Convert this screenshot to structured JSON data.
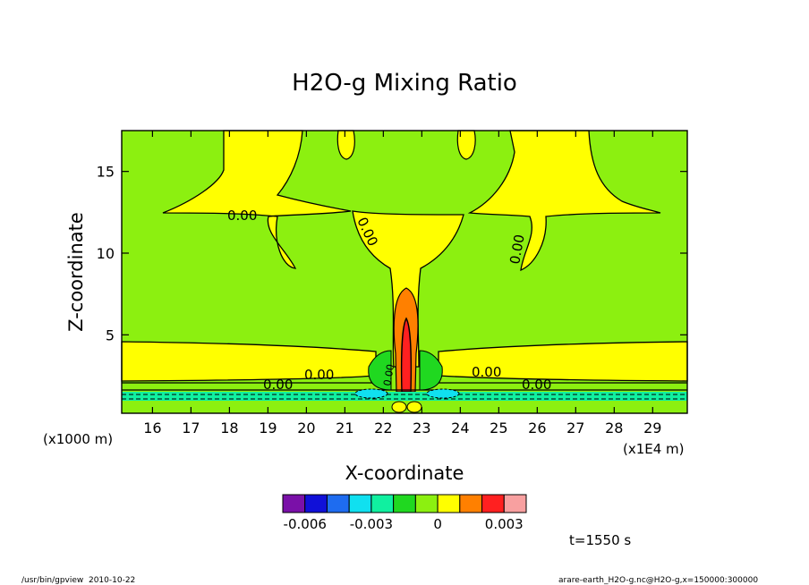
{
  "chart_data": {
    "type": "contour",
    "title": "H2O-g Mixing Ratio",
    "xlabel": "X-coordinate",
    "ylabel": "Z-coordinate",
    "x_unit": "(x1E4 m)",
    "y_unit": "(x1000 m)",
    "xlim": [
      15.2,
      29.9
    ],
    "ylim": [
      0.2,
      17.5
    ],
    "x_ticks": [
      16,
      17,
      18,
      19,
      20,
      21,
      22,
      23,
      24,
      25,
      26,
      27,
      28,
      29
    ],
    "y_ticks": [
      5,
      10,
      15
    ],
    "contour_labels": [
      "0.00",
      "0.00",
      "0.00",
      "0.00",
      "0.00",
      "0.00",
      "0.00",
      "0.00"
    ],
    "colorbar": {
      "colors": [
        "#7a10a8",
        "#1010d8",
        "#1e6cf0",
        "#10e0f0",
        "#10f0a0",
        "#20d820",
        "#8cf010",
        "#ffff00",
        "#ff8000",
        "#ff2020",
        "#f8a0a0"
      ],
      "tick_labels": [
        "-0.006",
        "-0.003",
        "0",
        "0.003"
      ]
    },
    "time_label": "t=1550 s"
  },
  "footer": {
    "left": "/usr/bin/gpview  2010-10-22",
    "right": "arare-earth_H2O-g.nc@H2O-g,x=150000:300000"
  }
}
